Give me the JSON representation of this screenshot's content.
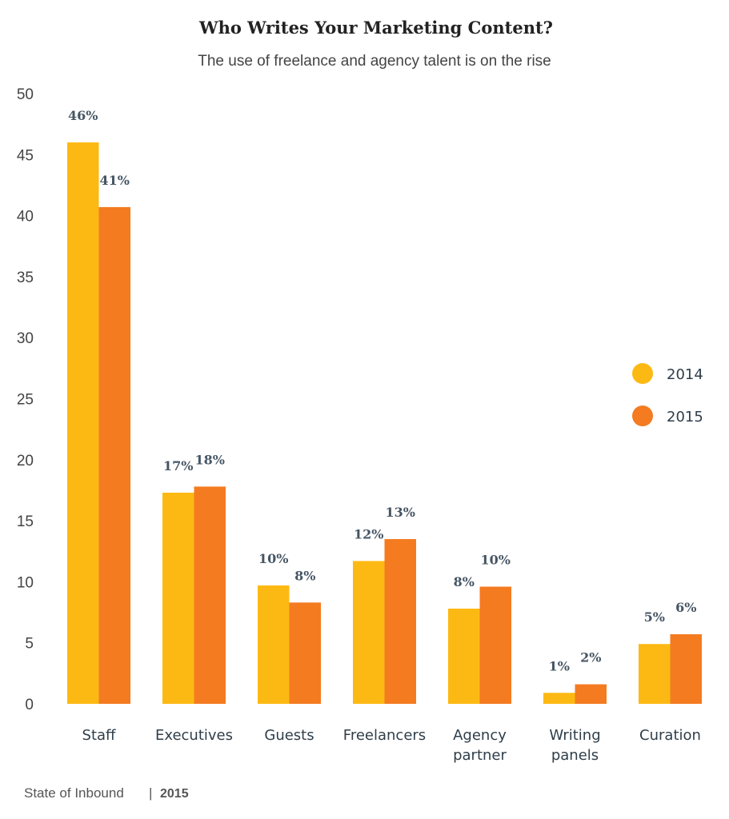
{
  "chart_data": {
    "type": "bar",
    "title": "Who Writes Your Marketing Content?",
    "subtitle": "The use of freelance and agency talent is on the rise",
    "xlabel": "",
    "ylabel": "",
    "ylim": [
      0,
      50
    ],
    "yticks": [
      0,
      5,
      10,
      15,
      20,
      25,
      30,
      35,
      40,
      45,
      50
    ],
    "categories": [
      [
        "Staff"
      ],
      [
        "Executives"
      ],
      [
        "Guests"
      ],
      [
        "Freelancers"
      ],
      [
        "Agency",
        "partner"
      ],
      [
        "Writing",
        "panels"
      ],
      [
        "Curation"
      ]
    ],
    "series": [
      {
        "name": "2014",
        "color": "#FDB913",
        "values": [
          46,
          17.3,
          9.7,
          11.7,
          7.8,
          0.9,
          4.9
        ],
        "labels": [
          "46%",
          "17%",
          "10%",
          "12%",
          "8%",
          "1%",
          "5%"
        ]
      },
      {
        "name": "2015",
        "color": "#F47B20",
        "values": [
          40.7,
          17.8,
          8.3,
          13.5,
          9.6,
          1.6,
          5.7
        ],
        "labels": [
          "41%",
          "18%",
          "8%",
          "13%",
          "10%",
          "2%",
          "6%"
        ]
      }
    ],
    "legend": "right",
    "grid": false
  },
  "footer": {
    "source": "State of Inbound",
    "separator": "|",
    "year": "2015"
  }
}
